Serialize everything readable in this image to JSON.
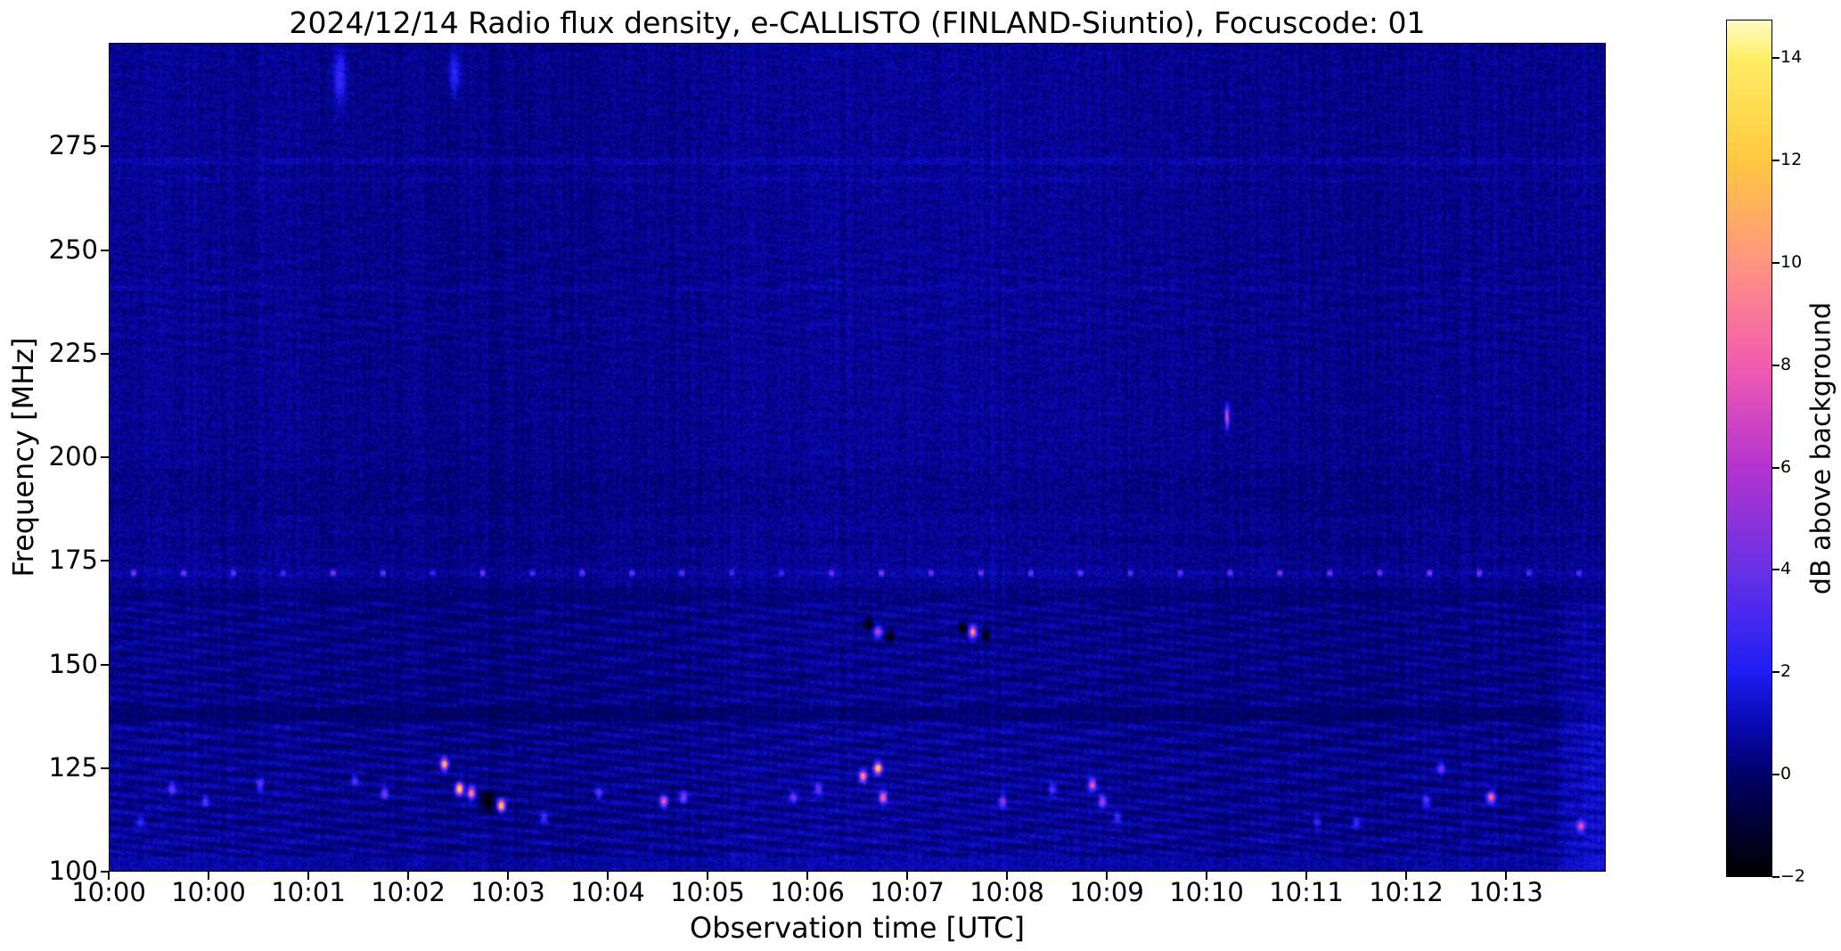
{
  "chart_data": {
    "type": "heatmap",
    "title": "2024/12/14  Radio flux density, e-CALLISTO (FINLAND-Siuntio), Focuscode: 01",
    "xlabel": "Observation time [UTC]",
    "ylabel": "Frequency [MHz]",
    "x_ticks": {
      "labels": [
        "10:00",
        "10:00",
        "10:01",
        "10:02",
        "10:03",
        "10:04",
        "10:05",
        "10:06",
        "10:07",
        "10:08",
        "10:09",
        "10:10",
        "10:11",
        "10:12",
        "10:13"
      ],
      "positions_idx": [
        0,
        1,
        2,
        3,
        4,
        5,
        6,
        7,
        8,
        9,
        10,
        11,
        12,
        13,
        14
      ]
    },
    "x_range_idx": [
      0,
      15
    ],
    "y_ticks_mhz": [
      100,
      125,
      150,
      175,
      200,
      225,
      250,
      275
    ],
    "y_range_mhz": [
      100,
      300
    ],
    "colorbar": {
      "label": "dB above background",
      "tick_labels": [
        "−2",
        "0",
        "2",
        "4",
        "6",
        "8",
        "10",
        "12",
        "14"
      ],
      "tick_values": [
        -2,
        0,
        2,
        4,
        6,
        8,
        10,
        12,
        14
      ],
      "vmin": -2,
      "vmax": 14.75
    },
    "colormap_stops": [
      {
        "v": -2,
        "c": "#000000"
      },
      {
        "v": 0,
        "c": "#00006a"
      },
      {
        "v": 1,
        "c": "#0a0ab8"
      },
      {
        "v": 2,
        "c": "#1e1ef2"
      },
      {
        "v": 3,
        "c": "#4628f0"
      },
      {
        "v": 4,
        "c": "#6a30e4"
      },
      {
        "v": 6,
        "c": "#b434cf"
      },
      {
        "v": 8,
        "c": "#f25cb0"
      },
      {
        "v": 10,
        "c": "#ff9482"
      },
      {
        "v": 12,
        "c": "#ffc840"
      },
      {
        "v": 14,
        "c": "#ffee66"
      },
      {
        "v": 15,
        "c": "#ffffe6"
      }
    ],
    "background_db": 0.5,
    "rfi_line": {
      "f_mhz": 172,
      "period_idx": 0.5,
      "db": 3
    },
    "features": [
      {
        "t": 0.3,
        "f": 112,
        "db": 2.5
      },
      {
        "t": 0.62,
        "f": 120,
        "db": 4
      },
      {
        "t": 0.95,
        "f": 117,
        "db": 3
      },
      {
        "t": 1.5,
        "f": 121,
        "db": 3.5
      },
      {
        "t": 2.45,
        "f": 122,
        "db": 3
      },
      {
        "t": 2.75,
        "f": 119,
        "db": 4.5
      },
      {
        "t": 2.3,
        "f": 292,
        "db": 2.2,
        "wt": 0.06,
        "wf": 6
      },
      {
        "t": 3.45,
        "f": 293,
        "db": 2.2,
        "wt": 0.05,
        "wf": 5
      },
      {
        "t": 3.35,
        "f": 126,
        "db": 12
      },
      {
        "t": 3.5,
        "f": 120,
        "db": 14
      },
      {
        "t": 3.62,
        "f": 119,
        "db": 10
      },
      {
        "t": 3.78,
        "f": 117,
        "db": -3,
        "wt": 0.06,
        "wf": 2.2
      },
      {
        "t": 3.92,
        "f": 116,
        "db": 13
      },
      {
        "t": 4.35,
        "f": 113,
        "db": 3
      },
      {
        "t": 4.9,
        "f": 119,
        "db": 3.5
      },
      {
        "t": 5.55,
        "f": 117,
        "db": 8
      },
      {
        "t": 5.75,
        "f": 118,
        "db": 5
      },
      {
        "t": 6.85,
        "f": 118,
        "db": 4
      },
      {
        "t": 7.1,
        "f": 120,
        "db": 4
      },
      {
        "t": 7.55,
        "f": 123,
        "db": 10
      },
      {
        "t": 7.7,
        "f": 125,
        "db": 13
      },
      {
        "t": 7.75,
        "f": 118,
        "db": 9
      },
      {
        "t": 7.7,
        "f": 158,
        "db": 6
      },
      {
        "t": 7.6,
        "f": 160,
        "db": -3
      },
      {
        "t": 7.82,
        "f": 157,
        "db": -3
      },
      {
        "t": 8.65,
        "f": 158,
        "db": 10
      },
      {
        "t": 8.55,
        "f": 159,
        "db": -3
      },
      {
        "t": 8.78,
        "f": 157,
        "db": -3
      },
      {
        "t": 8.95,
        "f": 117,
        "db": 5
      },
      {
        "t": 9.45,
        "f": 120,
        "db": 3
      },
      {
        "t": 9.85,
        "f": 121,
        "db": 8
      },
      {
        "t": 9.95,
        "f": 117,
        "db": 6
      },
      {
        "t": 10.1,
        "f": 113,
        "db": 3
      },
      {
        "t": 11.2,
        "f": 210,
        "db": 7,
        "wt": 0.02,
        "wf": 2.5
      },
      {
        "t": 12.1,
        "f": 112,
        "db": 2.5
      },
      {
        "t": 12.5,
        "f": 112,
        "db": 2.5
      },
      {
        "t": 13.2,
        "f": 117,
        "db": 3.5
      },
      {
        "t": 13.35,
        "f": 125,
        "db": 4
      },
      {
        "t": 13.85,
        "f": 118,
        "db": 9
      },
      {
        "t": 14.75,
        "f": 111,
        "db": 7
      }
    ]
  }
}
